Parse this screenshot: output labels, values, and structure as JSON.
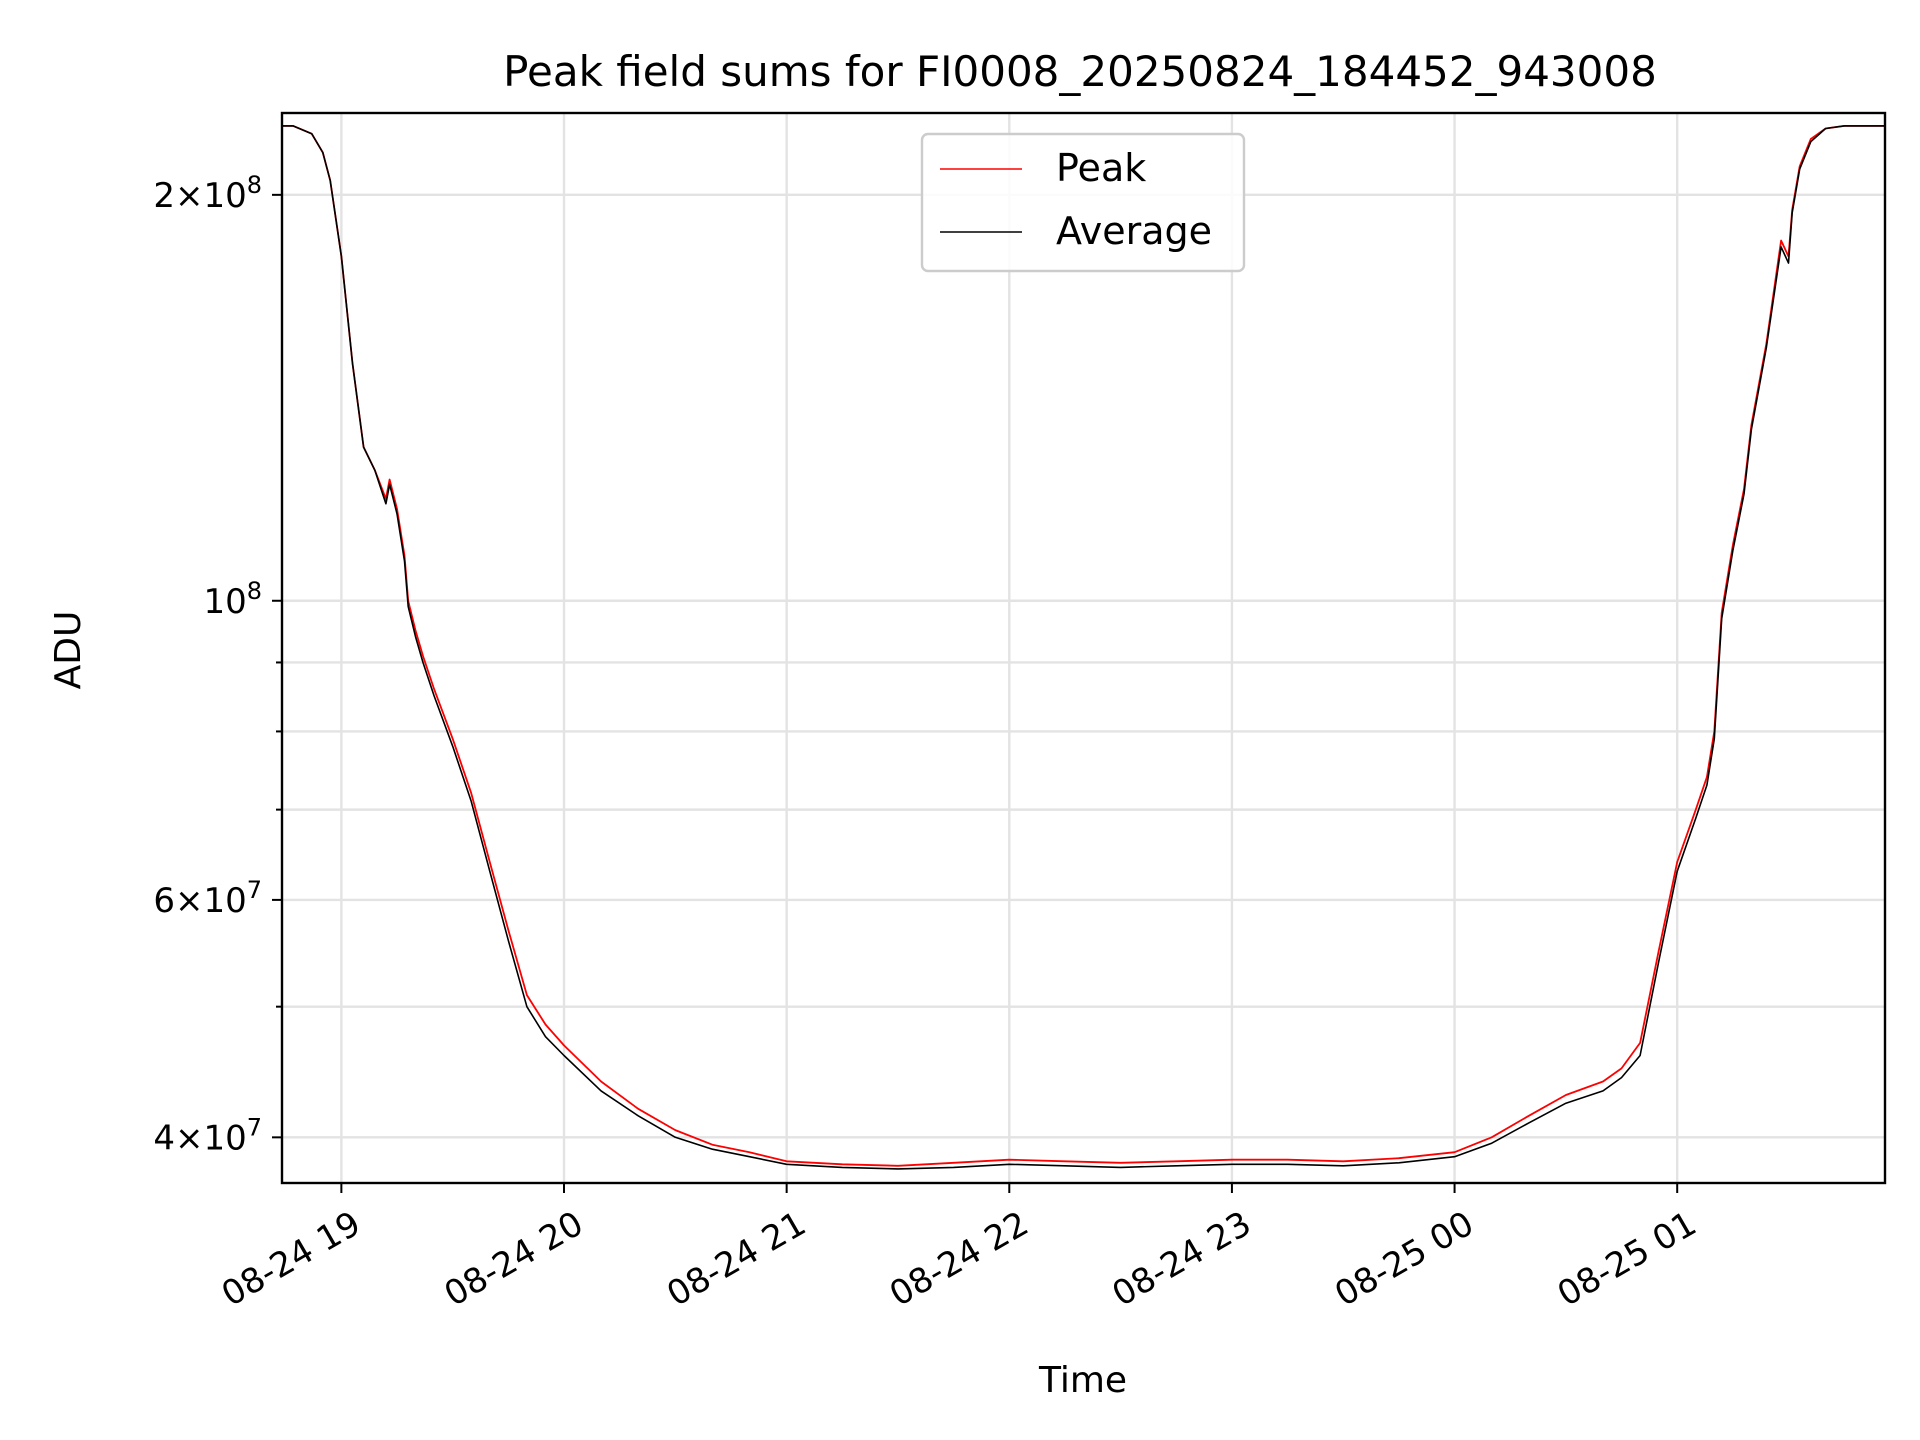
{
  "chart_data": {
    "type": "line",
    "title": "Peak field sums for FI0008_20250824_184452_943008",
    "xlabel": "Time",
    "ylabel": "ADU",
    "x_axis_type": "datetime",
    "y_scale": "log",
    "xlim": [
      "2025-08-24 18:44",
      "2025-08-25 01:56"
    ],
    "ylim": [
      37000000,
      230000000
    ],
    "grid": true,
    "legend_position": "upper center",
    "x_ticks": [
      {
        "value": "2025-08-24 19:00",
        "label": "08-24 19"
      },
      {
        "value": "2025-08-24 20:00",
        "label": "08-24 20"
      },
      {
        "value": "2025-08-24 21:00",
        "label": "08-24 21"
      },
      {
        "value": "2025-08-24 22:00",
        "label": "08-24 22"
      },
      {
        "value": "2025-08-24 23:00",
        "label": "08-24 23"
      },
      {
        "value": "2025-08-25 00:00",
        "label": "08-25 00"
      },
      {
        "value": "2025-08-25 01:00",
        "label": "08-25 01"
      }
    ],
    "y_major_ticks": [
      {
        "value": 40000000,
        "mantissa": "4",
        "exponent": "7"
      },
      {
        "value": 60000000,
        "mantissa": "6",
        "exponent": "7"
      },
      {
        "value": 100000000,
        "mantissa": "",
        "exponent": "8"
      },
      {
        "value": 200000000,
        "mantissa": "2",
        "exponent": "8"
      }
    ],
    "y_minor_ticks": [
      50000000,
      70000000,
      80000000,
      90000000
    ],
    "tick_base": "10",
    "tick_times": "×",
    "series": [
      {
        "name": "Peak",
        "color": "#ff0000",
        "x": [
          "2025-08-24 18:44",
          "2025-08-24 18:47",
          "2025-08-24 18:52",
          "2025-08-24 18:55",
          "2025-08-24 18:57",
          "2025-08-24 19:00",
          "2025-08-24 19:03",
          "2025-08-24 19:06",
          "2025-08-24 19:09",
          "2025-08-24 19:12",
          "2025-08-24 19:13",
          "2025-08-24 19:15",
          "2025-08-24 19:17",
          "2025-08-24 19:18",
          "2025-08-24 19:20",
          "2025-08-24 19:22",
          "2025-08-24 19:25",
          "2025-08-24 19:30",
          "2025-08-24 19:35",
          "2025-08-24 19:40",
          "2025-08-24 19:45",
          "2025-08-24 19:50",
          "2025-08-24 19:55",
          "2025-08-24 20:00",
          "2025-08-24 20:10",
          "2025-08-24 20:20",
          "2025-08-24 20:30",
          "2025-08-24 20:40",
          "2025-08-24 20:50",
          "2025-08-24 21:00",
          "2025-08-24 21:15",
          "2025-08-24 21:30",
          "2025-08-24 21:45",
          "2025-08-24 22:00",
          "2025-08-24 22:15",
          "2025-08-24 22:30",
          "2025-08-24 22:45",
          "2025-08-24 23:00",
          "2025-08-24 23:15",
          "2025-08-24 23:30",
          "2025-08-24 23:45",
          "2025-08-25 00:00",
          "2025-08-25 00:10",
          "2025-08-25 00:20",
          "2025-08-25 00:30",
          "2025-08-25 00:40",
          "2025-08-25 00:45",
          "2025-08-25 00:50",
          "2025-08-25 00:55",
          "2025-08-25 01:00",
          "2025-08-25 01:05",
          "2025-08-25 01:08",
          "2025-08-25 01:10",
          "2025-08-25 01:12",
          "2025-08-25 01:15",
          "2025-08-25 01:18",
          "2025-08-25 01:20",
          "2025-08-25 01:24",
          "2025-08-25 01:28",
          "2025-08-25 01:30",
          "2025-08-25 01:31",
          "2025-08-25 01:33",
          "2025-08-25 01:36",
          "2025-08-25 01:40",
          "2025-08-25 01:45",
          "2025-08-25 01:50",
          "2025-08-25 01:56"
        ],
        "y": [
          225000000,
          225000000,
          222000000,
          215000000,
          205000000,
          180000000,
          150000000,
          130000000,
          125000000,
          119000000,
          123000000,
          117000000,
          108000000,
          100000000,
          95000000,
          91000000,
          86000000,
          79000000,
          72000000,
          64000000,
          57000000,
          51000000,
          48500000,
          46800000,
          44000000,
          42000000,
          40500000,
          39500000,
          39000000,
          38400000,
          38200000,
          38100000,
          38300000,
          38500000,
          38400000,
          38300000,
          38400000,
          38500000,
          38500000,
          38400000,
          38600000,
          39000000,
          40000000,
          41500000,
          43000000,
          44000000,
          45000000,
          47000000,
          55000000,
          64000000,
          70000000,
          74000000,
          80000000,
          98000000,
          110000000,
          121000000,
          135000000,
          155000000,
          185000000,
          180000000,
          195000000,
          210000000,
          220000000,
          224000000,
          225000000,
          225000000,
          225000000
        ]
      },
      {
        "name": "Average",
        "color": "#000000",
        "x": [
          "2025-08-24 18:44",
          "2025-08-24 18:47",
          "2025-08-24 18:52",
          "2025-08-24 18:55",
          "2025-08-24 18:57",
          "2025-08-24 19:00",
          "2025-08-24 19:03",
          "2025-08-24 19:06",
          "2025-08-24 19:09",
          "2025-08-24 19:12",
          "2025-08-24 19:13",
          "2025-08-24 19:15",
          "2025-08-24 19:17",
          "2025-08-24 19:18",
          "2025-08-24 19:20",
          "2025-08-24 19:22",
          "2025-08-24 19:25",
          "2025-08-24 19:30",
          "2025-08-24 19:35",
          "2025-08-24 19:40",
          "2025-08-24 19:45",
          "2025-08-24 19:50",
          "2025-08-24 19:55",
          "2025-08-24 20:00",
          "2025-08-24 20:10",
          "2025-08-24 20:20",
          "2025-08-24 20:30",
          "2025-08-24 20:40",
          "2025-08-24 20:50",
          "2025-08-24 21:00",
          "2025-08-24 21:15",
          "2025-08-24 21:30",
          "2025-08-24 21:45",
          "2025-08-24 22:00",
          "2025-08-24 22:15",
          "2025-08-24 22:30",
          "2025-08-24 22:45",
          "2025-08-24 23:00",
          "2025-08-24 23:15",
          "2025-08-24 23:30",
          "2025-08-24 23:45",
          "2025-08-25 00:00",
          "2025-08-25 00:10",
          "2025-08-25 00:20",
          "2025-08-25 00:30",
          "2025-08-25 00:40",
          "2025-08-25 00:45",
          "2025-08-25 00:50",
          "2025-08-25 00:55",
          "2025-08-25 01:00",
          "2025-08-25 01:05",
          "2025-08-25 01:08",
          "2025-08-25 01:10",
          "2025-08-25 01:12",
          "2025-08-25 01:15",
          "2025-08-25 01:18",
          "2025-08-25 01:20",
          "2025-08-25 01:24",
          "2025-08-25 01:28",
          "2025-08-25 01:30",
          "2025-08-25 01:31",
          "2025-08-25 01:33",
          "2025-08-25 01:36",
          "2025-08-25 01:40",
          "2025-08-25 01:45",
          "2025-08-25 01:50",
          "2025-08-25 01:56"
        ],
        "y": [
          225000000,
          225000000,
          222000000,
          215000000,
          205000000,
          180000000,
          150000000,
          130000000,
          125000000,
          118000000,
          122000000,
          116000000,
          107000000,
          99000000,
          94000000,
          90000000,
          85000000,
          78000000,
          71000000,
          63000000,
          56000000,
          50000000,
          47500000,
          46000000,
          43300000,
          41500000,
          40000000,
          39200000,
          38700000,
          38200000,
          38000000,
          37900000,
          38000000,
          38200000,
          38100000,
          38000000,
          38100000,
          38200000,
          38200000,
          38100000,
          38300000,
          38700000,
          39600000,
          41000000,
          42400000,
          43300000,
          44300000,
          46000000,
          54000000,
          63000000,
          69000000,
          73000000,
          79000000,
          97000000,
          109000000,
          120000000,
          134000000,
          154000000,
          183000000,
          178000000,
          194000000,
          209000000,
          219000000,
          224000000,
          225000000,
          225000000,
          225000000
        ]
      }
    ]
  }
}
